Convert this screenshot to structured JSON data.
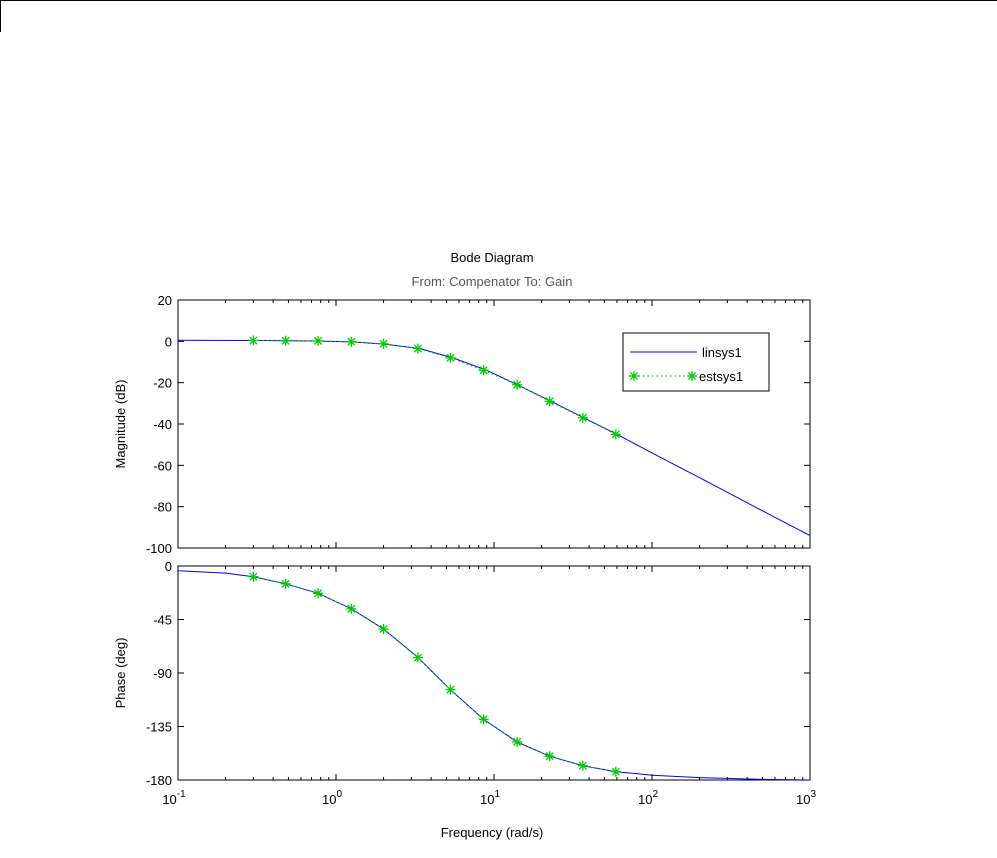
{
  "chart_data": {
    "type": "line",
    "title": "Bode Diagram",
    "subtitle": "From: Compenator  To: Gain",
    "xlabel": "Frequency  (rad/s)",
    "x_scale": "log",
    "xlim": [
      0.1,
      1000
    ],
    "x_ticks": [
      {
        "base": "10",
        "exp": "-1",
        "value": 0.1
      },
      {
        "base": "10",
        "exp": "0",
        "value": 1
      },
      {
        "base": "10",
        "exp": "1",
        "value": 10
      },
      {
        "base": "10",
        "exp": "2",
        "value": 100
      },
      {
        "base": "10",
        "exp": "3",
        "value": 1000
      }
    ],
    "legend": {
      "placement": "top-right",
      "entries": [
        {
          "name": "linsys1",
          "color": "#0000ff",
          "style": "solid"
        },
        {
          "name": "estsys1",
          "color": "#00cc00",
          "style": "dotted-star"
        }
      ]
    },
    "magnitude": {
      "ylabel": "Magnitude (dB)",
      "ylim": [
        -100,
        20
      ],
      "yticks": [
        "20",
        "0",
        "-20",
        "-40",
        "-60",
        "-80",
        "-100"
      ],
      "ytick_values": [
        20,
        0,
        -20,
        -40,
        -60,
        -80,
        -100
      ],
      "series": [
        {
          "name": "linsys1",
          "x": [
            0.1,
            0.3,
            0.5,
            0.8,
            1.3,
            2.1,
            3.4,
            5.5,
            9,
            14,
            23,
            37,
            60,
            100,
            200,
            500,
            1000
          ],
          "y": [
            0.5,
            0.4,
            0.3,
            0.1,
            -0.3,
            -1.5,
            -3.5,
            -8,
            -14,
            -21,
            -29,
            -37,
            -45,
            -54,
            -66,
            -82,
            -94
          ]
        },
        {
          "name": "estsys1",
          "x": [
            0.3,
            0.48,
            0.77,
            1.25,
            2.0,
            3.3,
            5.3,
            8.6,
            14,
            22.5,
            36.5,
            59
          ],
          "y": [
            0.4,
            0.3,
            0.2,
            -0.2,
            -1.2,
            -3.5,
            -8,
            -14,
            -21,
            -29,
            -37,
            -45
          ]
        }
      ]
    },
    "phase": {
      "ylabel": "Phase (deg)",
      "ylim": [
        -180,
        0
      ],
      "yticks": [
        "0",
        "-45",
        "-90",
        "-135",
        "-180"
      ],
      "ytick_values": [
        0,
        -45,
        -90,
        -135,
        -180
      ],
      "series": [
        {
          "name": "linsys1",
          "x": [
            0.1,
            0.2,
            0.3,
            0.48,
            0.77,
            1.25,
            2.0,
            3.3,
            5.3,
            8.6,
            14,
            22.5,
            36.5,
            59,
            100,
            200,
            500,
            1000
          ],
          "y": [
            -4,
            -6,
            -9,
            -15,
            -23,
            -36,
            -53,
            -77,
            -104,
            -129,
            -148,
            -160,
            -168,
            -173,
            -176,
            -178,
            -179.5,
            -180
          ]
        },
        {
          "name": "estsys1",
          "x": [
            0.3,
            0.48,
            0.77,
            1.25,
            2.0,
            3.3,
            5.3,
            8.6,
            14,
            22.5,
            36.5,
            59
          ],
          "y": [
            -9,
            -15,
            -23,
            -36,
            -53,
            -77,
            -104,
            -129,
            -148,
            -160,
            -168,
            -173
          ]
        }
      ]
    }
  }
}
